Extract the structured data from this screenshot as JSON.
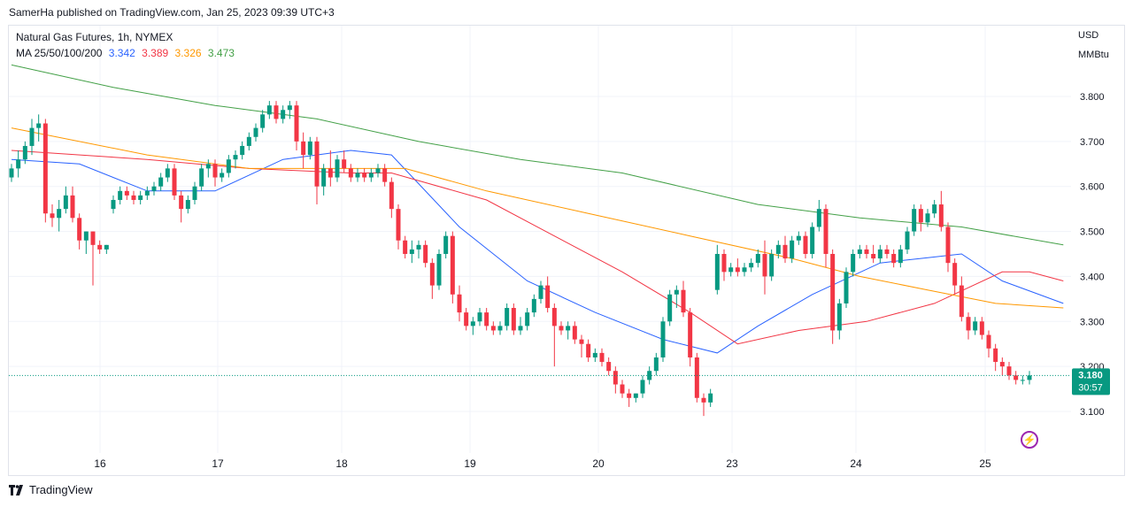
{
  "header": {
    "publisher_line": "SamerHa published on TradingView.com, Jan 25, 2023 09:39 UTC+3"
  },
  "legend": {
    "symbol_line": "Natural Gas Futures, 1h, NYMEX",
    "ma_label": "MA 25/50/100/200",
    "ma_values": [
      {
        "value": "3.342",
        "color": "#2962ff"
      },
      {
        "value": "3.389",
        "color": "#f23645"
      },
      {
        "value": "3.326",
        "color": "#ff9800"
      },
      {
        "value": "3.473",
        "color": "#43a047"
      }
    ]
  },
  "axis": {
    "currency": "USD",
    "unit": "MMBtu"
  },
  "price_tag": {
    "price": "3.180",
    "countdown": "30:57",
    "color": "#089981"
  },
  "footer": {
    "brand": "TradingView"
  },
  "colors": {
    "up": "#089981",
    "down": "#f23645",
    "grid": "#f0f3fa",
    "text": "#131722"
  },
  "chart_data": {
    "type": "candlestick",
    "title": "Natural Gas Futures, 1h, NYMEX",
    "ylim": [
      3.05,
      3.9
    ],
    "y_ticks": [
      "3.100",
      "3.200",
      "3.300",
      "3.400",
      "3.500",
      "3.600",
      "3.700",
      "3.800"
    ],
    "x_ticks": [
      "16",
      "17",
      "18",
      "19",
      "20",
      "23",
      "24",
      "25"
    ],
    "last_price": 3.18,
    "candles": [
      [
        3.62,
        3.65,
        3.61,
        3.64
      ],
      [
        3.64,
        3.68,
        3.62,
        3.66
      ],
      [
        3.66,
        3.7,
        3.65,
        3.69
      ],
      [
        3.69,
        3.75,
        3.67,
        3.73
      ],
      [
        3.73,
        3.76,
        3.7,
        3.74
      ],
      [
        3.74,
        3.75,
        3.52,
        3.54
      ],
      [
        3.54,
        3.56,
        3.51,
        3.53
      ],
      [
        3.53,
        3.57,
        3.5,
        3.55
      ],
      [
        3.55,
        3.6,
        3.54,
        3.58
      ],
      [
        3.58,
        3.6,
        3.52,
        3.53
      ],
      [
        3.53,
        3.54,
        3.46,
        3.48
      ],
      [
        3.48,
        3.5,
        3.45,
        3.5
      ],
      [
        3.5,
        3.5,
        3.38,
        3.47
      ],
      [
        3.47,
        3.48,
        3.45,
        3.46
      ],
      [
        3.46,
        3.47,
        3.45,
        3.47
      ],
      [
        3.55,
        3.58,
        3.54,
        3.57
      ],
      [
        3.57,
        3.6,
        3.56,
        3.59
      ],
      [
        3.59,
        3.6,
        3.57,
        3.58
      ],
      [
        3.58,
        3.59,
        3.56,
        3.57
      ],
      [
        3.57,
        3.59,
        3.56,
        3.58
      ],
      [
        3.58,
        3.6,
        3.57,
        3.59
      ],
      [
        3.59,
        3.61,
        3.58,
        3.6
      ],
      [
        3.6,
        3.63,
        3.59,
        3.62
      ],
      [
        3.62,
        3.65,
        3.61,
        3.64
      ],
      [
        3.64,
        3.65,
        3.57,
        3.58
      ],
      [
        3.58,
        3.59,
        3.52,
        3.55
      ],
      [
        3.55,
        3.58,
        3.54,
        3.57
      ],
      [
        3.57,
        3.61,
        3.56,
        3.6
      ],
      [
        3.6,
        3.65,
        3.59,
        3.64
      ],
      [
        3.64,
        3.66,
        3.62,
        3.65
      ],
      [
        3.65,
        3.66,
        3.6,
        3.62
      ],
      [
        3.62,
        3.64,
        3.61,
        3.63
      ],
      [
        3.63,
        3.67,
        3.62,
        3.66
      ],
      [
        3.66,
        3.68,
        3.64,
        3.67
      ],
      [
        3.67,
        3.7,
        3.66,
        3.69
      ],
      [
        3.69,
        3.72,
        3.68,
        3.71
      ],
      [
        3.71,
        3.74,
        3.7,
        3.73
      ],
      [
        3.73,
        3.77,
        3.72,
        3.76
      ],
      [
        3.76,
        3.79,
        3.75,
        3.78
      ],
      [
        3.78,
        3.79,
        3.74,
        3.75
      ],
      [
        3.75,
        3.78,
        3.74,
        3.77
      ],
      [
        3.77,
        3.79,
        3.75,
        3.78
      ],
      [
        3.78,
        3.79,
        3.68,
        3.7
      ],
      [
        3.7,
        3.72,
        3.64,
        3.67
      ],
      [
        3.67,
        3.71,
        3.66,
        3.7
      ],
      [
        3.7,
        3.71,
        3.56,
        3.6
      ],
      [
        3.6,
        3.65,
        3.58,
        3.64
      ],
      [
        3.64,
        3.68,
        3.6,
        3.62
      ],
      [
        3.62,
        3.67,
        3.61,
        3.66
      ],
      [
        3.66,
        3.68,
        3.63,
        3.64
      ],
      [
        3.64,
        3.65,
        3.61,
        3.62
      ],
      [
        3.62,
        3.64,
        3.61,
        3.63
      ],
      [
        3.63,
        3.64,
        3.61,
        3.62
      ],
      [
        3.62,
        3.64,
        3.61,
        3.63
      ],
      [
        3.63,
        3.65,
        3.62,
        3.64
      ],
      [
        3.64,
        3.65,
        3.6,
        3.61
      ],
      [
        3.61,
        3.62,
        3.53,
        3.55
      ],
      [
        3.55,
        3.56,
        3.46,
        3.48
      ],
      [
        3.48,
        3.49,
        3.44,
        3.45
      ],
      [
        3.45,
        3.48,
        3.43,
        3.46
      ],
      [
        3.46,
        3.48,
        3.44,
        3.47
      ],
      [
        3.47,
        3.48,
        3.42,
        3.43
      ],
      [
        3.43,
        3.44,
        3.35,
        3.38
      ],
      [
        3.38,
        3.46,
        3.37,
        3.45
      ],
      [
        3.45,
        3.5,
        3.44,
        3.49
      ],
      [
        3.49,
        3.5,
        3.34,
        3.36
      ],
      [
        3.36,
        3.38,
        3.3,
        3.32
      ],
      [
        3.32,
        3.33,
        3.28,
        3.29
      ],
      [
        3.29,
        3.31,
        3.27,
        3.3
      ],
      [
        3.3,
        3.33,
        3.29,
        3.32
      ],
      [
        3.32,
        3.33,
        3.28,
        3.29
      ],
      [
        3.29,
        3.3,
        3.27,
        3.28
      ],
      [
        3.28,
        3.3,
        3.27,
        3.29
      ],
      [
        3.29,
        3.34,
        3.28,
        3.33
      ],
      [
        3.33,
        3.34,
        3.27,
        3.28
      ],
      [
        3.28,
        3.31,
        3.27,
        3.29
      ],
      [
        3.29,
        3.33,
        3.28,
        3.32
      ],
      [
        3.32,
        3.36,
        3.31,
        3.35
      ],
      [
        3.35,
        3.39,
        3.34,
        3.38
      ],
      [
        3.38,
        3.4,
        3.32,
        3.33
      ],
      [
        3.33,
        3.34,
        3.2,
        3.29
      ],
      [
        3.29,
        3.3,
        3.27,
        3.28
      ],
      [
        3.28,
        3.3,
        3.26,
        3.29
      ],
      [
        3.29,
        3.3,
        3.25,
        3.26
      ],
      [
        3.26,
        3.27,
        3.22,
        3.25
      ],
      [
        3.25,
        3.26,
        3.21,
        3.22
      ],
      [
        3.22,
        3.24,
        3.21,
        3.23
      ],
      [
        3.23,
        3.24,
        3.2,
        3.21
      ],
      [
        3.21,
        3.22,
        3.18,
        3.19
      ],
      [
        3.19,
        3.2,
        3.14,
        3.16
      ],
      [
        3.16,
        3.17,
        3.13,
        3.14
      ],
      [
        3.14,
        3.15,
        3.11,
        3.13
      ],
      [
        3.13,
        3.14,
        3.12,
        3.14
      ],
      [
        3.14,
        3.18,
        3.13,
        3.17
      ],
      [
        3.17,
        3.2,
        3.16,
        3.19
      ],
      [
        3.19,
        3.23,
        3.18,
        3.22
      ],
      [
        3.22,
        3.31,
        3.21,
        3.3
      ],
      [
        3.3,
        3.37,
        3.29,
        3.36
      ],
      [
        3.36,
        3.38,
        3.33,
        3.37
      ],
      [
        3.37,
        3.39,
        3.31,
        3.32
      ],
      [
        3.32,
        3.33,
        3.2,
        3.22
      ],
      [
        3.22,
        3.23,
        3.12,
        3.13
      ],
      [
        3.13,
        3.14,
        3.09,
        3.12
      ],
      [
        3.12,
        3.15,
        3.11,
        3.14
      ],
      [
        3.37,
        3.47,
        3.36,
        3.45
      ],
      [
        3.45,
        3.46,
        3.39,
        3.41
      ],
      [
        3.41,
        3.43,
        3.4,
        3.42
      ],
      [
        3.42,
        3.44,
        3.4,
        3.41
      ],
      [
        3.41,
        3.43,
        3.4,
        3.42
      ],
      [
        3.42,
        3.44,
        3.41,
        3.43
      ],
      [
        3.43,
        3.46,
        3.42,
        3.45
      ],
      [
        3.45,
        3.48,
        3.36,
        3.4
      ],
      [
        3.4,
        3.46,
        3.39,
        3.45
      ],
      [
        3.45,
        3.48,
        3.44,
        3.47
      ],
      [
        3.47,
        3.49,
        3.43,
        3.44
      ],
      [
        3.44,
        3.49,
        3.43,
        3.48
      ],
      [
        3.48,
        3.5,
        3.47,
        3.49
      ],
      [
        3.49,
        3.5,
        3.44,
        3.45
      ],
      [
        3.45,
        3.52,
        3.44,
        3.51
      ],
      [
        3.51,
        3.57,
        3.5,
        3.55
      ],
      [
        3.55,
        3.56,
        3.42,
        3.45
      ],
      [
        3.45,
        3.46,
        3.25,
        3.28
      ],
      [
        3.28,
        3.35,
        3.26,
        3.34
      ],
      [
        3.34,
        3.42,
        3.33,
        3.41
      ],
      [
        3.41,
        3.46,
        3.4,
        3.45
      ],
      [
        3.45,
        3.47,
        3.44,
        3.46
      ],
      [
        3.46,
        3.47,
        3.44,
        3.45
      ],
      [
        3.45,
        3.47,
        3.43,
        3.44
      ],
      [
        3.44,
        3.47,
        3.43,
        3.46
      ],
      [
        3.46,
        3.47,
        3.44,
        3.45
      ],
      [
        3.45,
        3.46,
        3.42,
        3.43
      ],
      [
        3.43,
        3.47,
        3.42,
        3.46
      ],
      [
        3.46,
        3.51,
        3.45,
        3.5
      ],
      [
        3.5,
        3.56,
        3.49,
        3.55
      ],
      [
        3.55,
        3.56,
        3.5,
        3.52
      ],
      [
        3.52,
        3.55,
        3.51,
        3.54
      ],
      [
        3.54,
        3.57,
        3.53,
        3.56
      ],
      [
        3.56,
        3.59,
        3.5,
        3.51
      ],
      [
        3.51,
        3.52,
        3.41,
        3.43
      ],
      [
        3.43,
        3.44,
        3.36,
        3.38
      ],
      [
        3.38,
        3.4,
        3.3,
        3.31
      ],
      [
        3.31,
        3.32,
        3.26,
        3.28
      ],
      [
        3.28,
        3.31,
        3.27,
        3.3
      ],
      [
        3.3,
        3.31,
        3.26,
        3.27
      ],
      [
        3.27,
        3.28,
        3.22,
        3.24
      ],
      [
        3.24,
        3.25,
        3.19,
        3.21
      ],
      [
        3.21,
        3.22,
        3.18,
        3.2
      ],
      [
        3.2,
        3.21,
        3.17,
        3.18
      ],
      [
        3.18,
        3.19,
        3.16,
        3.17
      ],
      [
        3.17,
        3.18,
        3.16,
        3.17
      ],
      [
        3.17,
        3.19,
        3.16,
        3.18
      ]
    ],
    "moving_averages": [
      {
        "name": "MA 25",
        "color": "#2962ff",
        "points": [
          [
            0,
            3.66
          ],
          [
            10,
            3.65
          ],
          [
            20,
            3.59
          ],
          [
            30,
            3.59
          ],
          [
            40,
            3.66
          ],
          [
            50,
            3.68
          ],
          [
            56,
            3.67
          ],
          [
            66,
            3.51
          ],
          [
            76,
            3.39
          ],
          [
            86,
            3.32
          ],
          [
            96,
            3.26
          ],
          [
            104,
            3.23
          ],
          [
            110,
            3.29
          ],
          [
            118,
            3.36
          ],
          [
            128,
            3.43
          ],
          [
            134,
            3.44
          ],
          [
            140,
            3.45
          ],
          [
            146,
            3.39
          ],
          [
            155,
            3.34
          ]
        ]
      },
      {
        "name": "MA 50",
        "color": "#f23645",
        "points": [
          [
            0,
            3.68
          ],
          [
            20,
            3.66
          ],
          [
            35,
            3.64
          ],
          [
            50,
            3.63
          ],
          [
            56,
            3.63
          ],
          [
            70,
            3.57
          ],
          [
            80,
            3.49
          ],
          [
            90,
            3.41
          ],
          [
            100,
            3.32
          ],
          [
            107,
            3.25
          ],
          [
            116,
            3.28
          ],
          [
            126,
            3.3
          ],
          [
            136,
            3.34
          ],
          [
            146,
            3.41
          ],
          [
            150,
            3.41
          ],
          [
            155,
            3.39
          ]
        ]
      },
      {
        "name": "MA 100",
        "color": "#ff9800",
        "points": [
          [
            0,
            3.73
          ],
          [
            20,
            3.67
          ],
          [
            35,
            3.64
          ],
          [
            50,
            3.64
          ],
          [
            58,
            3.64
          ],
          [
            70,
            3.59
          ],
          [
            85,
            3.54
          ],
          [
            100,
            3.49
          ],
          [
            115,
            3.44
          ],
          [
            125,
            3.4
          ],
          [
            135,
            3.37
          ],
          [
            145,
            3.34
          ],
          [
            155,
            3.33
          ]
        ]
      },
      {
        "name": "MA 200",
        "color": "#43a047",
        "points": [
          [
            0,
            3.87
          ],
          [
            15,
            3.82
          ],
          [
            30,
            3.78
          ],
          [
            45,
            3.75
          ],
          [
            60,
            3.7
          ],
          [
            75,
            3.66
          ],
          [
            90,
            3.63
          ],
          [
            110,
            3.56
          ],
          [
            125,
            3.53
          ],
          [
            140,
            3.51
          ],
          [
            155,
            3.47
          ]
        ]
      }
    ]
  }
}
